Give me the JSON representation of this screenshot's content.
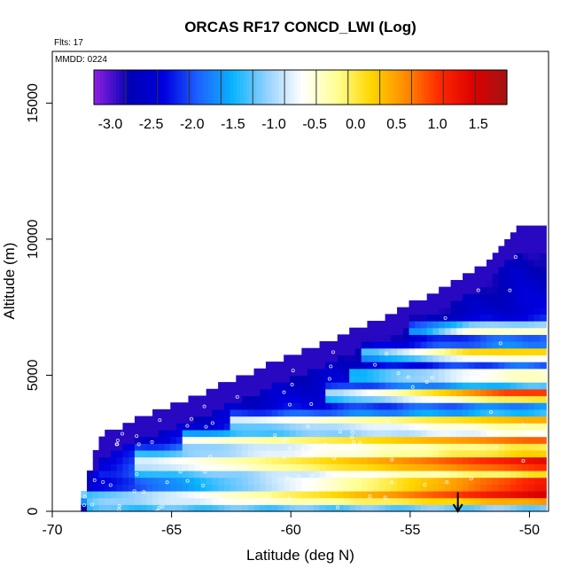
{
  "chart_data": {
    "type": "heatmap",
    "title": "ORCAS RF17 CONCD_LWI (Log)",
    "annotations": {
      "flights": "Flts: 17",
      "date": "MMDD: 0224"
    },
    "xlabel": "Latitude (deg N)",
    "ylabel": "Altitude (m)",
    "xlim": [
      -70,
      -49.2
    ],
    "ylim": [
      0,
      16900
    ],
    "x_ticks": [
      -70,
      -65,
      -60,
      -55,
      -50
    ],
    "x_tick_labels": [
      "-70",
      "-65",
      "-60",
      "-55",
      "-50"
    ],
    "y_ticks": [
      0,
      5000,
      10000,
      15000
    ],
    "y_tick_labels": [
      "0",
      "5000",
      "10000",
      "15000"
    ],
    "colorbar": {
      "placement": "top-inside",
      "range": [
        -3.2,
        1.85
      ],
      "ticks": [
        -3.0,
        -2.5,
        -2.0,
        -1.5,
        -1.0,
        -0.5,
        0.0,
        0.5,
        1.0,
        1.5
      ],
      "tick_labels": [
        "-3.0",
        "-2.5",
        "-2.0",
        "-1.5",
        "-1.0",
        "-0.5",
        "0.0",
        "0.5",
        "1.0",
        "1.5"
      ],
      "colors": [
        "#8a1fe0",
        "#0000b4",
        "#0000e0",
        "#1e64ff",
        "#0ab4ff",
        "#96d2ff",
        "#ffffff",
        "#ffff96",
        "#ffd700",
        "#ff8c00",
        "#ff2800",
        "#dc0000",
        "#a01414"
      ]
    },
    "grid": {
      "lat_step": 0.25,
      "alt_step": 250,
      "lat_start": -68.8,
      "lat_end": -49.4,
      "top_boundary": [
        [
          -68.8,
          250
        ],
        [
          -68.0,
          2700
        ],
        [
          -64.0,
          4100
        ],
        [
          -60.0,
          5600
        ],
        [
          -56.0,
          7000
        ],
        [
          -52.0,
          8900
        ],
        [
          -50.4,
          10300
        ],
        [
          -49.8,
          10300
        ]
      ]
    },
    "layers": [
      {
        "alt": 550,
        "width": 250,
        "lat0": -68.5,
        "v0": -1.0,
        "lat1": -49.5,
        "v1": 1.7
      },
      {
        "alt": 1000,
        "width": 300,
        "lat0": -68.0,
        "v0": -2.5,
        "lat1": -49.5,
        "v1": 1.6
      },
      {
        "alt": 1800,
        "width": 450,
        "lat0": -66.0,
        "v0": -0.8,
        "lat1": -49.5,
        "v1": 1.4
      },
      {
        "alt": 2600,
        "width": 300,
        "lat0": -64.0,
        "v0": -0.6,
        "lat1": -50.0,
        "v1": 0.8
      },
      {
        "alt": 3300,
        "width": 250,
        "lat0": -62.0,
        "v0": -0.7,
        "lat1": -50.0,
        "v1": 0.6
      },
      {
        "alt": 4300,
        "width": 250,
        "lat0": -58.0,
        "v0": -0.9,
        "lat1": -51.0,
        "v1": 1.2
      },
      {
        "alt": 5000,
        "width": 200,
        "lat0": -57.0,
        "v0": -1.0,
        "lat1": -51.0,
        "v1": 0.3
      },
      {
        "alt": 5800,
        "width": 250,
        "lat0": -56.5,
        "v0": -1.2,
        "lat1": -52.5,
        "v1": 0.4
      },
      {
        "alt": 6700,
        "width": 250,
        "lat0": -54.5,
        "v0": -1.6,
        "lat1": -52.5,
        "v1": -0.3
      }
    ],
    "marker": {
      "type": "arrow-down",
      "lat": -53.0,
      "alt_top": 700,
      "alt_bottom": 0
    }
  }
}
